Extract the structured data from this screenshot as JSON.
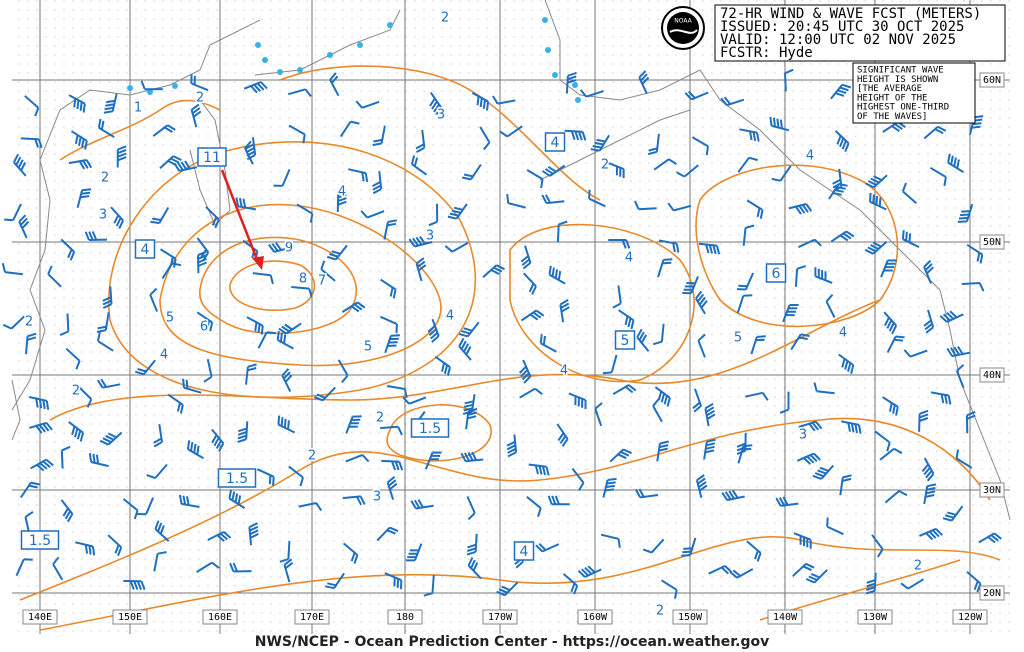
{
  "header": {
    "lines": [
      "72-HR WIND & WAVE FCST (METERS)",
      "ISSUED: 20:45 UTC 30 OCT 2025",
      "VALID:  12:00 UTC 02 NOV 2025",
      "FCSTR:  Hyde"
    ]
  },
  "note": {
    "lines": [
      "SIGNIFICANT WAVE",
      "HEIGHT IS SHOWN",
      "[THE AVERAGE",
      "HEIGHT OF THE",
      "HIGHEST ONE-THIRD",
      "OF THE WAVES]"
    ]
  },
  "latitude_labels": [
    "60N",
    "50N",
    "40N",
    "30N",
    "20N"
  ],
  "longitude_labels": [
    "140E",
    "150E",
    "160E",
    "170E",
    "180",
    "170W",
    "160W",
    "150W",
    "140W",
    "130W",
    "120W"
  ],
  "boxed_heights": [
    "11",
    "4",
    "4",
    "6",
    "5",
    "1.5",
    "1.5",
    "1.5",
    "4"
  ],
  "contour_labels": [
    "2",
    "1",
    "2",
    "3",
    "2",
    "3",
    "4",
    "3",
    "9",
    "8",
    "7",
    "4",
    "2",
    "4",
    "5",
    "6",
    "4",
    "5",
    "4",
    "4",
    "5",
    "4",
    "2",
    "2",
    "2",
    "2",
    "3",
    "3",
    "2",
    "2"
  ],
  "footer": "NWS/NCEP - Ocean Prediction Center - https://ocean.weather.gov"
}
